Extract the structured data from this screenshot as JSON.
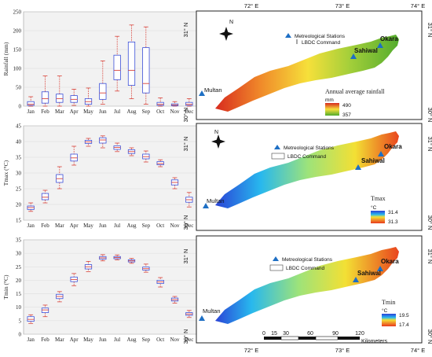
{
  "chart_data": [
    {
      "type": "box",
      "ylabel": "Rainfall (mm)",
      "categories": [
        "Jan",
        "Feb",
        "Mar",
        "Apr",
        "May",
        "Jun",
        "Jul",
        "Aug",
        "Sep",
        "Oct",
        "Nov",
        "Dec"
      ],
      "ylim": [
        0,
        250
      ],
      "yticks": [
        0,
        50,
        100,
        150,
        200,
        250
      ],
      "boxes": [
        {
          "min": 0,
          "q1": 2,
          "median": 5,
          "q3": 12,
          "max": 25
        },
        {
          "min": 0,
          "q1": 8,
          "median": 20,
          "q3": 38,
          "max": 80
        },
        {
          "min": 0,
          "q1": 10,
          "median": 20,
          "q3": 32,
          "max": 80
        },
        {
          "min": 2,
          "q1": 10,
          "median": 18,
          "q3": 28,
          "max": 45
        },
        {
          "min": 0,
          "q1": 5,
          "median": 12,
          "q3": 20,
          "max": 48
        },
        {
          "min": 5,
          "q1": 18,
          "median": 35,
          "q3": 60,
          "max": 120
        },
        {
          "min": 40,
          "q1": 70,
          "median": 95,
          "q3": 135,
          "max": 185
        },
        {
          "min": 20,
          "q1": 55,
          "median": 95,
          "q3": 170,
          "max": 215
        },
        {
          "min": 5,
          "q1": 35,
          "median": 60,
          "q3": 155,
          "max": 210
        },
        {
          "min": 0,
          "q1": 2,
          "median": 5,
          "q3": 10,
          "max": 22
        },
        {
          "min": 0,
          "q1": 1,
          "median": 3,
          "q3": 6,
          "max": 12
        },
        {
          "min": 0,
          "q1": 2,
          "median": 5,
          "q3": 10,
          "max": 20
        }
      ]
    },
    {
      "type": "box",
      "ylabel": "Tmax (°C)",
      "categories": [
        "Jan",
        "Feb",
        "Mar",
        "Apr",
        "May",
        "Jun",
        "Jul",
        "Aug",
        "Sep",
        "Oct",
        "Nov",
        "Dec"
      ],
      "ylim": [
        15,
        45
      ],
      "yticks": [
        15,
        20,
        25,
        30,
        35,
        40,
        45
      ],
      "boxes": [
        {
          "min": 17.8,
          "q1": 18.4,
          "median": 19.0,
          "q3": 19.5,
          "max": 20.5
        },
        {
          "min": 20.5,
          "q1": 21.5,
          "median": 22.3,
          "q3": 23.5,
          "max": 24.5
        },
        {
          "min": 25.0,
          "q1": 27.0,
          "median": 28.2,
          "q3": 29.5,
          "max": 32.0
        },
        {
          "min": 32.5,
          "q1": 33.8,
          "median": 34.8,
          "q3": 36.0,
          "max": 38.5
        },
        {
          "min": 38.5,
          "q1": 39.4,
          "median": 39.9,
          "q3": 40.4,
          "max": 41.0
        },
        {
          "min": 38.0,
          "q1": 39.5,
          "median": 40.5,
          "q3": 41.2,
          "max": 41.8
        },
        {
          "min": 36.8,
          "q1": 37.5,
          "median": 38.1,
          "q3": 38.6,
          "max": 39.5
        },
        {
          "min": 35.5,
          "q1": 36.2,
          "median": 36.8,
          "q3": 37.4,
          "max": 38.0
        },
        {
          "min": 33.5,
          "q1": 34.5,
          "median": 35.2,
          "q3": 36.0,
          "max": 37.0
        },
        {
          "min": 32.0,
          "q1": 32.6,
          "median": 33.0,
          "q3": 33.6,
          "max": 34.2
        },
        {
          "min": 25.0,
          "q1": 26.2,
          "median": 27.0,
          "q3": 27.8,
          "max": 28.5
        },
        {
          "min": 19.2,
          "q1": 20.7,
          "median": 21.5,
          "q3": 22.3,
          "max": 23.8
        }
      ]
    },
    {
      "type": "box",
      "ylabel": "Tmin (°C)",
      "categories": [
        "Jan",
        "Feb",
        "Mar",
        "Apr",
        "May",
        "Jun",
        "Jul",
        "Aug",
        "Sep",
        "Oct",
        "Nov",
        "Dec"
      ],
      "ylim": [
        0,
        35
      ],
      "yticks": [
        0,
        5,
        10,
        15,
        20,
        25,
        30,
        35
      ],
      "boxes": [
        {
          "min": 4.0,
          "q1": 4.8,
          "median": 5.5,
          "q3": 6.5,
          "max": 7.2
        },
        {
          "min": 6.5,
          "q1": 8.0,
          "median": 9.0,
          "q3": 9.7,
          "max": 10.8
        },
        {
          "min": 12.0,
          "q1": 13.2,
          "median": 14.0,
          "q3": 14.8,
          "max": 15.8
        },
        {
          "min": 18.0,
          "q1": 19.5,
          "median": 20.3,
          "q3": 21.2,
          "max": 22.5
        },
        {
          "min": 23.2,
          "q1": 24.2,
          "median": 25.0,
          "q3": 25.8,
          "max": 27.0
        },
        {
          "min": 27.2,
          "q1": 27.8,
          "median": 28.3,
          "q3": 28.8,
          "max": 29.5
        },
        {
          "min": 27.6,
          "q1": 28.0,
          "median": 28.4,
          "q3": 28.8,
          "max": 29.4
        },
        {
          "min": 26.3,
          "q1": 26.8,
          "median": 27.2,
          "q3": 27.6,
          "max": 28.1
        },
        {
          "min": 23.0,
          "q1": 23.8,
          "median": 24.3,
          "q3": 24.9,
          "max": 26.0
        },
        {
          "min": 17.5,
          "q1": 18.8,
          "median": 19.4,
          "q3": 20.0,
          "max": 21.0
        },
        {
          "min": 11.5,
          "q1": 12.3,
          "median": 12.8,
          "q3": 13.4,
          "max": 14.0
        },
        {
          "min": 6.2,
          "q1": 7.0,
          "median": 7.5,
          "q3": 8.0,
          "max": 8.8
        }
      ]
    },
    {
      "type": "map",
      "variable": "Annual average rainfall",
      "unit": "mm",
      "legend_high": "490",
      "legend_low": "357",
      "gradient": [
        "#d7281e",
        "#f08a2a",
        "#f6e03a",
        "#a4cf3a",
        "#4faa2d"
      ],
      "station_legend": "Metreological Stations",
      "command_legend": "LBDC Command",
      "x_ticks": [
        "72° E",
        "73° E",
        "74° E"
      ],
      "y_ticks": [
        "31° N",
        "30° N"
      ],
      "cities": [
        "Multan",
        "Sahiwal",
        "Okara"
      ],
      "north": "N"
    },
    {
      "type": "map",
      "variable": "Tmax",
      "unit": "°C",
      "legend_high": "31.4",
      "legend_low": "31.3",
      "gradient": [
        "#2a3fd6",
        "#28b8ee",
        "#9de37a",
        "#f3e034",
        "#e83a1c"
      ],
      "station_legend": "Metreological Stations",
      "command_legend": "LBDC Command",
      "y_ticks": [
        "31° N",
        "30° N"
      ],
      "cities": [
        "Multan",
        "Sahiwal",
        "Okara"
      ],
      "north": "N"
    },
    {
      "type": "map",
      "variable": "Tmin",
      "unit": "°C",
      "legend_high": "19.5",
      "legend_low": "17.4",
      "gradient": [
        "#2a3fd6",
        "#28b8ee",
        "#9de37a",
        "#f3e034",
        "#e83a1c"
      ],
      "station_legend": "Metreological Stations",
      "command_legend": "LBDC Command",
      "x_ticks": [
        "72° E",
        "73° E",
        "74° E"
      ],
      "y_ticks": [
        "31° N",
        "30° N"
      ],
      "cities": [
        "Multan",
        "Sahiwal",
        "Okara"
      ],
      "scale_ticks": [
        "0",
        "15",
        "30",
        "60",
        "90",
        "120"
      ],
      "scale_unit": "Kilometers"
    }
  ]
}
